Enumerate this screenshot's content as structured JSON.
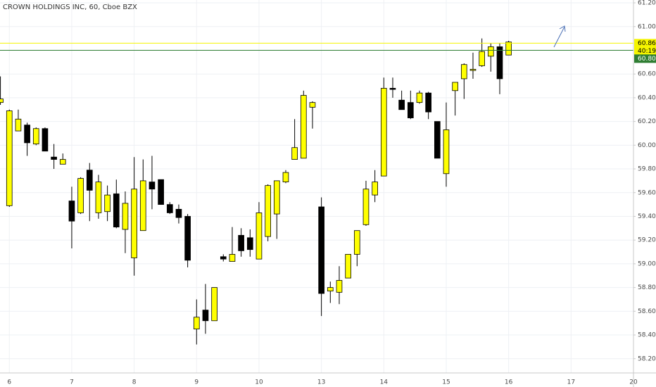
{
  "chart_data": {
    "type": "candlestick",
    "title": "CROWN HOLDINGS INC, 60, Cboe BZX",
    "categories": [
      null,
      "6",
      null,
      null,
      null,
      null,
      null,
      null,
      "7",
      null,
      null,
      null,
      null,
      null,
      null,
      "8",
      null,
      null,
      null,
      null,
      null,
      null,
      "9",
      null,
      null,
      null,
      null,
      null,
      null,
      "10",
      null,
      null,
      null,
      null,
      null,
      null,
      "13",
      null,
      null,
      null,
      null,
      null,
      null,
      "14",
      null,
      null,
      null,
      null,
      null,
      null,
      "15",
      null,
      null,
      null,
      null,
      null,
      null,
      "16",
      null,
      null,
      null,
      null,
      null,
      null,
      "17",
      null,
      null,
      null,
      null,
      null,
      null,
      "20"
    ],
    "open": [
      60.36,
      59.49,
      60.12,
      60.17,
      60.01,
      60.14,
      59.9,
      59.84,
      59.53,
      59.43,
      59.79,
      59.43,
      59.44,
      59.59,
      59.29,
      59.05,
      59.28,
      59.69,
      59.71,
      59.5,
      59.46,
      59.4,
      58.45,
      58.61,
      58.52,
      59.06,
      59.02,
      59.24,
      59.22,
      59.04,
      59.23,
      59.42,
      59.69,
      59.88,
      59.89,
      60.32,
      59.48,
      58.77,
      58.76,
      58.88,
      59.08,
      59.33,
      59.58,
      59.74,
      60.48,
      60.38,
      60.36,
      60.36,
      60.44,
      60.2,
      59.76,
      60.46,
      60.56,
      60.63,
      60.67,
      60.75,
      60.83,
      60.76,
      null,
      null,
      null,
      null,
      null,
      null,
      null,
      null,
      null,
      null,
      null,
      null,
      null,
      null
    ],
    "high": [
      60.58,
      60.3,
      60.3,
      60.19,
      60.15,
      60.15,
      60.01,
      59.93,
      59.65,
      59.73,
      59.85,
      59.75,
      59.66,
      59.71,
      59.61,
      59.9,
      59.88,
      59.91,
      59.71,
      59.52,
      59.5,
      59.42,
      58.7,
      58.83,
      58.8,
      59.08,
      59.31,
      59.3,
      59.29,
      59.52,
      59.67,
      59.7,
      59.79,
      60.22,
      60.46,
      60.37,
      59.56,
      58.85,
      58.98,
      59.08,
      59.28,
      59.7,
      59.79,
      60.57,
      60.57,
      60.46,
      60.46,
      60.46,
      60.45,
      60.2,
      60.36,
      60.53,
      60.69,
      60.78,
      60.9,
      60.86,
      60.86,
      60.88,
      null,
      null,
      null,
      null,
      null,
      null,
      null,
      null,
      null,
      null,
      null,
      null,
      null,
      null
    ],
    "low": [
      60.34,
      59.48,
      60.12,
      59.91,
      60.0,
      59.95,
      59.8,
      59.84,
      59.13,
      59.42,
      59.36,
      59.38,
      59.36,
      59.3,
      59.09,
      58.9,
      59.28,
      59.46,
      59.5,
      59.42,
      59.34,
      58.97,
      58.32,
      58.41,
      58.52,
      59.02,
      59.02,
      59.06,
      59.06,
      59.04,
      59.19,
      59.21,
      59.68,
      59.88,
      59.89,
      60.14,
      58.56,
      58.67,
      58.66,
      58.88,
      58.98,
      59.32,
      59.52,
      59.74,
      60.4,
      60.3,
      60.22,
      60.35,
      60.22,
      59.89,
      59.65,
      60.25,
      60.39,
      60.56,
      60.66,
      60.62,
      60.43,
      60.76,
      null,
      null,
      null,
      null,
      null,
      null,
      null,
      null,
      null,
      null,
      null,
      null,
      null,
      null
    ],
    "close": [
      60.39,
      60.29,
      60.22,
      60.02,
      60.14,
      59.95,
      59.88,
      59.88,
      59.36,
      59.72,
      59.62,
      59.69,
      59.58,
      59.31,
      59.51,
      59.63,
      59.7,
      59.63,
      59.5,
      59.43,
      59.39,
      59.03,
      58.55,
      58.52,
      58.8,
      59.04,
      59.08,
      59.11,
      59.12,
      59.43,
      59.66,
      59.7,
      59.77,
      59.98,
      60.42,
      60.36,
      58.75,
      58.8,
      58.86,
      59.08,
      59.28,
      59.63,
      59.69,
      60.48,
      60.47,
      60.3,
      60.23,
      60.44,
      60.28,
      59.89,
      60.13,
      60.53,
      60.68,
      60.64,
      60.79,
      60.83,
      60.56,
      60.87,
      null,
      null,
      null,
      null,
      null,
      null,
      null,
      null,
      null,
      null,
      null,
      null,
      null,
      null
    ],
    "up_color": "#ffff00",
    "down_color": "#000000",
    "ylim": [
      58.08,
      61.224
    ],
    "yticks": [
      {
        "value": 58.2,
        "label": "58.20"
      },
      {
        "value": 58.4,
        "label": "58.40"
      },
      {
        "value": 58.6,
        "label": "58.60"
      },
      {
        "value": 58.8,
        "label": "58.80"
      },
      {
        "value": 59,
        "label": "59.00"
      },
      {
        "value": 59.2,
        "label": "59.20"
      },
      {
        "value": 59.4,
        "label": "59.40"
      },
      {
        "value": 59.6,
        "label": "59.60"
      },
      {
        "value": 59.8,
        "label": "59.80"
      },
      {
        "value": 60,
        "label": "60.00"
      },
      {
        "value": 60.2,
        "label": "60.20"
      },
      {
        "value": 60.4,
        "label": "60.40"
      },
      {
        "value": 60.6,
        "label": "60.60"
      },
      {
        "value": 61,
        "label": "61.00"
      },
      {
        "value": 61.2,
        "label": "61.20"
      }
    ],
    "grid": true,
    "price_lines": [
      {
        "value": 60.86,
        "label": "60.86",
        "color": "#f5f500"
      },
      {
        "value": 60.8,
        "label": "60.80",
        "color": "#2e7d32"
      }
    ],
    "countdown": "40:19"
  }
}
